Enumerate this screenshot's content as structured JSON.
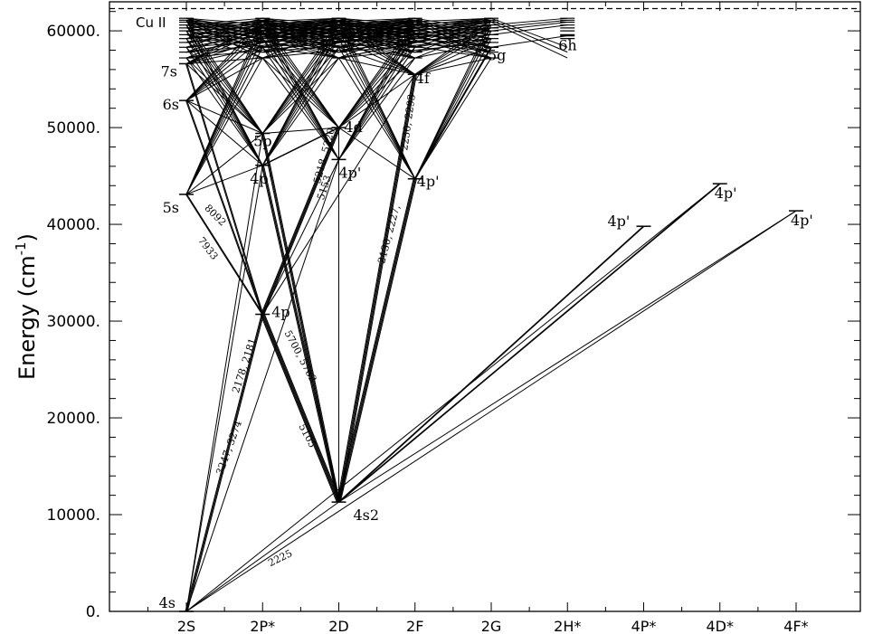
{
  "title_label": "Cu II",
  "y_axis": {
    "label": "Energy (cm",
    "label_sup": "-1",
    "label_close": ")",
    "ticks": [
      {
        "v": 0,
        "label": "0."
      },
      {
        "v": 10000,
        "label": "10000."
      },
      {
        "v": 20000,
        "label": "20000."
      },
      {
        "v": 30000,
        "label": "30000."
      },
      {
        "v": 40000,
        "label": "40000."
      },
      {
        "v": 50000,
        "label": "50000."
      },
      {
        "v": 60000,
        "label": "60000."
      }
    ],
    "range": [
      0,
      63000
    ],
    "minor_step": 2000
  },
  "x_axis": {
    "columns": [
      "2S",
      "2P*",
      "2D",
      "2F",
      "2G",
      "2H*",
      "4P*",
      "4D*",
      "4F*"
    ]
  },
  "ionization_limit": 62300,
  "levels": [
    {
      "id": "4s",
      "col": 0,
      "e": 0,
      "label": "4s"
    },
    {
      "id": "5s",
      "col": 0,
      "e": 43100,
      "label": "5s"
    },
    {
      "id": "6s",
      "col": 0,
      "e": 52800,
      "label": "6s"
    },
    {
      "id": "7s",
      "col": 0,
      "e": 56600,
      "label": "7s"
    },
    {
      "id": "4p",
      "col": 1,
      "e": 30700,
      "label": "4p"
    },
    {
      "id": "4pp2",
      "col": 1,
      "e": 46100,
      "label": "4p'"
    },
    {
      "id": "5p",
      "col": 1,
      "e": 49400,
      "label": "5p"
    },
    {
      "id": "4s2",
      "col": 2,
      "e": 11300,
      "label": "4s2"
    },
    {
      "id": "4pp3",
      "col": 2,
      "e": 46700,
      "label": "4p'"
    },
    {
      "id": "4d",
      "col": 2,
      "e": 50000,
      "label": "4d"
    },
    {
      "id": "4pp4",
      "col": 3,
      "e": 44700,
      "label": "4p'"
    },
    {
      "id": "4f",
      "col": 3,
      "e": 55500,
      "label": "4f"
    },
    {
      "id": "5g",
      "col": 4,
      "e": 58300,
      "label": "5g"
    },
    {
      "id": "6h",
      "col": 5,
      "e": 59500,
      "label": "6h"
    },
    {
      "id": "4pp7",
      "col": 6,
      "e": 39800,
      "label": "4p'"
    },
    {
      "id": "4pp8",
      "col": 7,
      "e": 44200,
      "label": "4p'"
    },
    {
      "id": "4pp9",
      "col": 8,
      "e": 41400,
      "label": "4p'"
    }
  ],
  "transitions": [
    {
      "from": "4s",
      "to": "4p",
      "w": 3
    },
    {
      "from": "4s",
      "to": "4pp2",
      "w": 1
    },
    {
      "from": "4s",
      "to": "5p",
      "w": 1
    },
    {
      "from": "4s",
      "to": "4s2",
      "w": 1
    },
    {
      "from": "4s",
      "to": "4pp3",
      "w": 1
    },
    {
      "from": "4s2",
      "to": "4p",
      "w": 5
    },
    {
      "from": "4s2",
      "to": "4pp2",
      "w": 3
    },
    {
      "from": "4s2",
      "to": "5p",
      "w": 3
    },
    {
      "from": "4s2",
      "to": "4pp4",
      "w": 4
    },
    {
      "from": "4s2",
      "to": "4f",
      "w": 4
    },
    {
      "from": "4s2",
      "to": "4pp7",
      "w": 2
    },
    {
      "from": "4s2",
      "to": "4pp8",
      "w": 2
    },
    {
      "from": "4s2",
      "to": "4pp9",
      "w": 1
    },
    {
      "from": "4s2",
      "to": "4d",
      "w": 1
    },
    {
      "from": "4s2",
      "to": "4pp3",
      "w": 1
    },
    {
      "from": "4s",
      "to": "4pp9",
      "w": 1
    },
    {
      "from": "4s",
      "to": "4pp8",
      "w": 1
    },
    {
      "from": "5s",
      "to": "4p",
      "w": 1.5
    },
    {
      "from": "5s",
      "to": "4pp2",
      "w": 1
    },
    {
      "from": "5s",
      "to": "5p",
      "w": 1
    },
    {
      "from": "6s",
      "to": "4p",
      "w": 2
    },
    {
      "from": "6s",
      "to": "5p",
      "w": 1
    },
    {
      "from": "6s",
      "to": "4pp2",
      "w": 1
    },
    {
      "from": "7s",
      "to": "4p",
      "w": 2
    },
    {
      "from": "7s",
      "to": "5p",
      "w": 1
    },
    {
      "from": "4p",
      "to": "4d",
      "w": 4
    },
    {
      "from": "4p",
      "to": "4pp3",
      "w": 1
    },
    {
      "from": "4p",
      "to": "4f",
      "w": 1
    },
    {
      "from": "4pp2",
      "to": "4d",
      "w": 1.5
    },
    {
      "from": "5p",
      "to": "4d",
      "w": 1
    },
    {
      "from": "4d",
      "to": "4f",
      "w": 1
    },
    {
      "from": "4pp4",
      "to": "4d",
      "w": 1
    },
    {
      "from": "4pp4",
      "to": "5g",
      "w": 2
    },
    {
      "from": "4f",
      "to": "5g",
      "w": 1
    },
    {
      "from": "5g",
      "to": "6h",
      "w": 1
    }
  ],
  "upper_fan": {
    "from_cols": [
      0,
      1,
      2,
      3,
      4
    ],
    "energies": [
      57200,
      57800,
      58300,
      58800,
      59200,
      59600,
      60000,
      60300,
      60600,
      60900,
      61100,
      61300
    ]
  },
  "wavelength_labels": [
    {
      "text": "2225",
      "col": 1.25,
      "e": 5200,
      "angle": -26
    },
    {
      "text": "3247, 3274",
      "col": 0.6,
      "e": 16800,
      "angle": -70
    },
    {
      "text": "2178, 2181",
      "col": 0.8,
      "e": 25300,
      "angle": -72
    },
    {
      "text": "5700, 5782",
      "col": 1.46,
      "e": 26200,
      "angle": 62
    },
    {
      "text": "5105",
      "col": 1.55,
      "e": 18000,
      "angle": 62
    },
    {
      "text": "8092",
      "col": 0.35,
      "e": 40700,
      "angle": 45
    },
    {
      "text": "7933",
      "col": 0.25,
      "e": 37300,
      "angle": 52
    },
    {
      "text": "5153",
      "col": 1.85,
      "e": 43700,
      "angle": -72
    },
    {
      "text": "5218, 5220",
      "col": 1.85,
      "e": 47000,
      "angle": -75
    },
    {
      "text": "2130, 2227,",
      "col": 2.7,
      "e": 38900,
      "angle": -75
    },
    {
      "text": "2230, 2293",
      "col": 2.95,
      "e": 50500,
      "angle": -82
    }
  ]
}
